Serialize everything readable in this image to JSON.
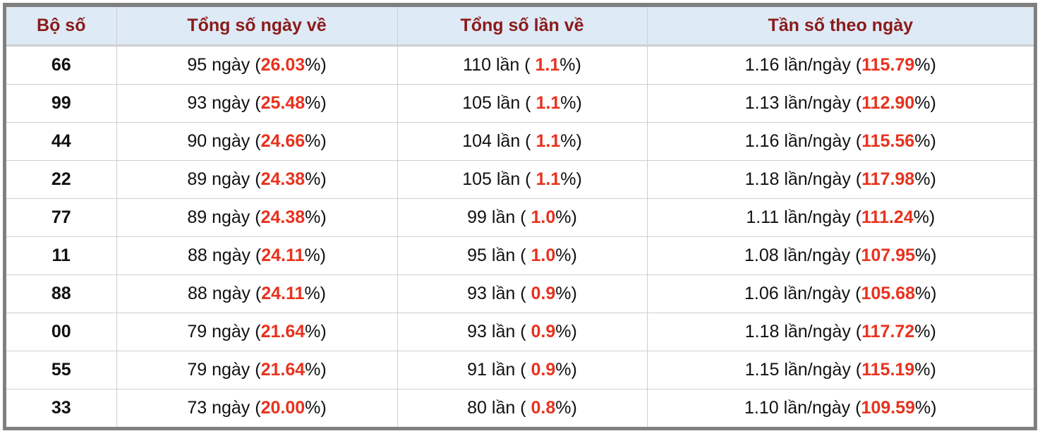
{
  "headers": [
    "Bộ số",
    "Tổng số ngày về",
    "Tổng số lần về",
    "Tần số theo ngày"
  ],
  "colors": {
    "header_text": "#8b1a1a",
    "header_bg": "#deeaf6",
    "highlight": "#e8321e",
    "border": "#808080"
  },
  "rows": [
    {
      "bo_so": "66",
      "ngay": "95",
      "ngay_pct": "26.03",
      "lan": "110",
      "lan_pct": "1.1",
      "tan_so": "1.16",
      "tan_so_pct": "115.79"
    },
    {
      "bo_so": "99",
      "ngay": "93",
      "ngay_pct": "25.48",
      "lan": "105",
      "lan_pct": "1.1",
      "tan_so": "1.13",
      "tan_so_pct": "112.90"
    },
    {
      "bo_so": "44",
      "ngay": "90",
      "ngay_pct": "24.66",
      "lan": "104",
      "lan_pct": "1.1",
      "tan_so": "1.16",
      "tan_so_pct": "115.56"
    },
    {
      "bo_so": "22",
      "ngay": "89",
      "ngay_pct": "24.38",
      "lan": "105",
      "lan_pct": "1.1",
      "tan_so": "1.18",
      "tan_so_pct": "117.98"
    },
    {
      "bo_so": "77",
      "ngay": "89",
      "ngay_pct": "24.38",
      "lan": "99",
      "lan_pct": "1.0",
      "tan_so": "1.11",
      "tan_so_pct": "111.24"
    },
    {
      "bo_so": "11",
      "ngay": "88",
      "ngay_pct": "24.11",
      "lan": "95",
      "lan_pct": "1.0",
      "tan_so": "1.08",
      "tan_so_pct": "107.95"
    },
    {
      "bo_so": "88",
      "ngay": "88",
      "ngay_pct": "24.11",
      "lan": "93",
      "lan_pct": "0.9",
      "tan_so": "1.06",
      "tan_so_pct": "105.68"
    },
    {
      "bo_so": "00",
      "ngay": "79",
      "ngay_pct": "21.64",
      "lan": "93",
      "lan_pct": "0.9",
      "tan_so": "1.18",
      "tan_so_pct": "117.72"
    },
    {
      "bo_so": "55",
      "ngay": "79",
      "ngay_pct": "21.64",
      "lan": "91",
      "lan_pct": "0.9",
      "tan_so": "1.15",
      "tan_so_pct": "115.19"
    },
    {
      "bo_so": "33",
      "ngay": "73",
      "ngay_pct": "20.00",
      "lan": "80",
      "lan_pct": "0.8",
      "tan_so": "1.10",
      "tan_so_pct": "109.59"
    }
  ],
  "units": {
    "ngay": " ngày (",
    "lan": " lần ( ",
    "tan_so": " lần/ngày (",
    "pct_close": "%)"
  }
}
